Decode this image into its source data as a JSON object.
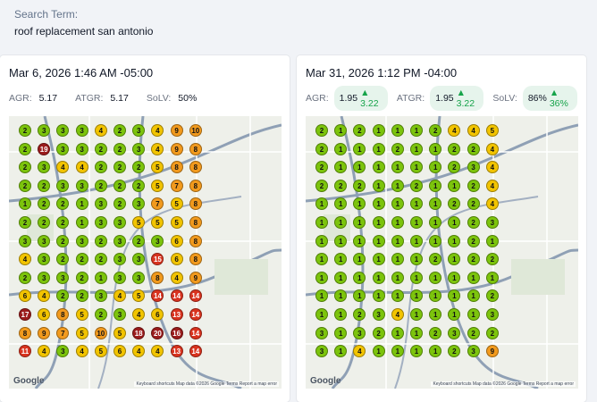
{
  "search": {
    "label": "Search Term:",
    "value": "roof replacement san antonio"
  },
  "map_attribution": "Keyboard shortcuts  Map data ©2026 Google  Terms  Report a map error",
  "google_logo": "Google",
  "colors": {
    "green": "#7cc40c",
    "yellow": "#f2c400",
    "orange": "#f29a1d",
    "red": "#d9331f",
    "darkred": "#9b1c1c",
    "highway": "#8fa0b5",
    "road": "#ffffff",
    "accent_green": "#16a34a"
  },
  "scans": [
    {
      "date": "Mar 6, 2026 1:46 AM -05:00",
      "agr_label": "AGR:",
      "agr": "5.17",
      "atgr_label": "ATGR:",
      "atgr": "5.17",
      "solv_label": "SoLV:",
      "solv": "50%",
      "grid": [
        [
          "2",
          "3",
          "3",
          "3",
          "4",
          "2",
          "3",
          "4",
          "9",
          "10"
        ],
        [
          "2",
          "19",
          "3",
          "3",
          "2",
          "2",
          "3",
          "4",
          "9",
          "8"
        ],
        [
          "2",
          "3",
          "4",
          "4",
          "2",
          "2",
          "2",
          "5",
          "8",
          "8"
        ],
        [
          "2",
          "2",
          "3",
          "3",
          "2",
          "2",
          "2",
          "5",
          "7",
          "8"
        ],
        [
          "1",
          "2",
          "2",
          "1",
          "3",
          "2",
          "3",
          "7",
          "5",
          "8"
        ],
        [
          "2",
          "2",
          "2",
          "1",
          "3",
          "3",
          "5",
          "5",
          "5",
          "8"
        ],
        [
          "3",
          "3",
          "2",
          "3",
          "2",
          "3",
          "2",
          "3",
          "6",
          "8"
        ],
        [
          "4",
          "3",
          "2",
          "2",
          "2",
          "3",
          "3",
          "15",
          "6",
          "8"
        ],
        [
          "2",
          "3",
          "3",
          "2",
          "1",
          "3",
          "3",
          "8",
          "4",
          "9"
        ],
        [
          "6",
          "4",
          "2",
          "2",
          "3",
          "4",
          "5",
          "14",
          "14",
          "14"
        ],
        [
          "17",
          "6",
          "8",
          "5",
          "2",
          "3",
          "4",
          "6",
          "13",
          "14"
        ],
        [
          "8",
          "9",
          "7",
          "5",
          "10",
          "5",
          "18",
          "20",
          "16",
          "14"
        ],
        [
          "11",
          "4",
          "3",
          "4",
          "5",
          "6",
          "4",
          "4",
          "13",
          "14"
        ]
      ]
    },
    {
      "date": "Mar 31, 2026 1:12 PM -04:00",
      "agr_label": "AGR:",
      "agr": "1.95",
      "agr_delta": "3.22",
      "atgr_label": "ATGR:",
      "atgr": "1.95",
      "atgr_delta": "3.22",
      "solv_label": "SoLV:",
      "solv": "86%",
      "solv_delta": "36%",
      "grid": [
        [
          "2",
          "1",
          "2",
          "1",
          "1",
          "1",
          "2",
          "4",
          "4",
          "5"
        ],
        [
          "2",
          "1",
          "1",
          "1",
          "2",
          "1",
          "1",
          "2",
          "2",
          "4"
        ],
        [
          "2",
          "1",
          "1",
          "1",
          "1",
          "1",
          "1",
          "2",
          "3",
          "4"
        ],
        [
          "2",
          "2",
          "2",
          "1",
          "1",
          "2",
          "1",
          "1",
          "2",
          "4"
        ],
        [
          "1",
          "1",
          "1",
          "1",
          "1",
          "1",
          "1",
          "2",
          "2",
          "4"
        ],
        [
          "1",
          "1",
          "1",
          "1",
          "1",
          "1",
          "1",
          "1",
          "2",
          "3"
        ],
        [
          "1",
          "1",
          "1",
          "1",
          "1",
          "1",
          "1",
          "1",
          "2",
          "1"
        ],
        [
          "1",
          "1",
          "1",
          "1",
          "1",
          "1",
          "2",
          "1",
          "2",
          "2"
        ],
        [
          "1",
          "1",
          "1",
          "1",
          "1",
          "1",
          "1",
          "1",
          "1",
          "1"
        ],
        [
          "1",
          "1",
          "1",
          "1",
          "1",
          "1",
          "1",
          "1",
          "1",
          "2"
        ],
        [
          "1",
          "1",
          "2",
          "3",
          "4",
          "1",
          "1",
          "1",
          "1",
          "3"
        ],
        [
          "3",
          "1",
          "3",
          "2",
          "1",
          "1",
          "2",
          "3",
          "2",
          "2"
        ],
        [
          "3",
          "1",
          "4",
          "1",
          "1",
          "1",
          "1",
          "2",
          "3",
          "9"
        ]
      ]
    }
  ]
}
